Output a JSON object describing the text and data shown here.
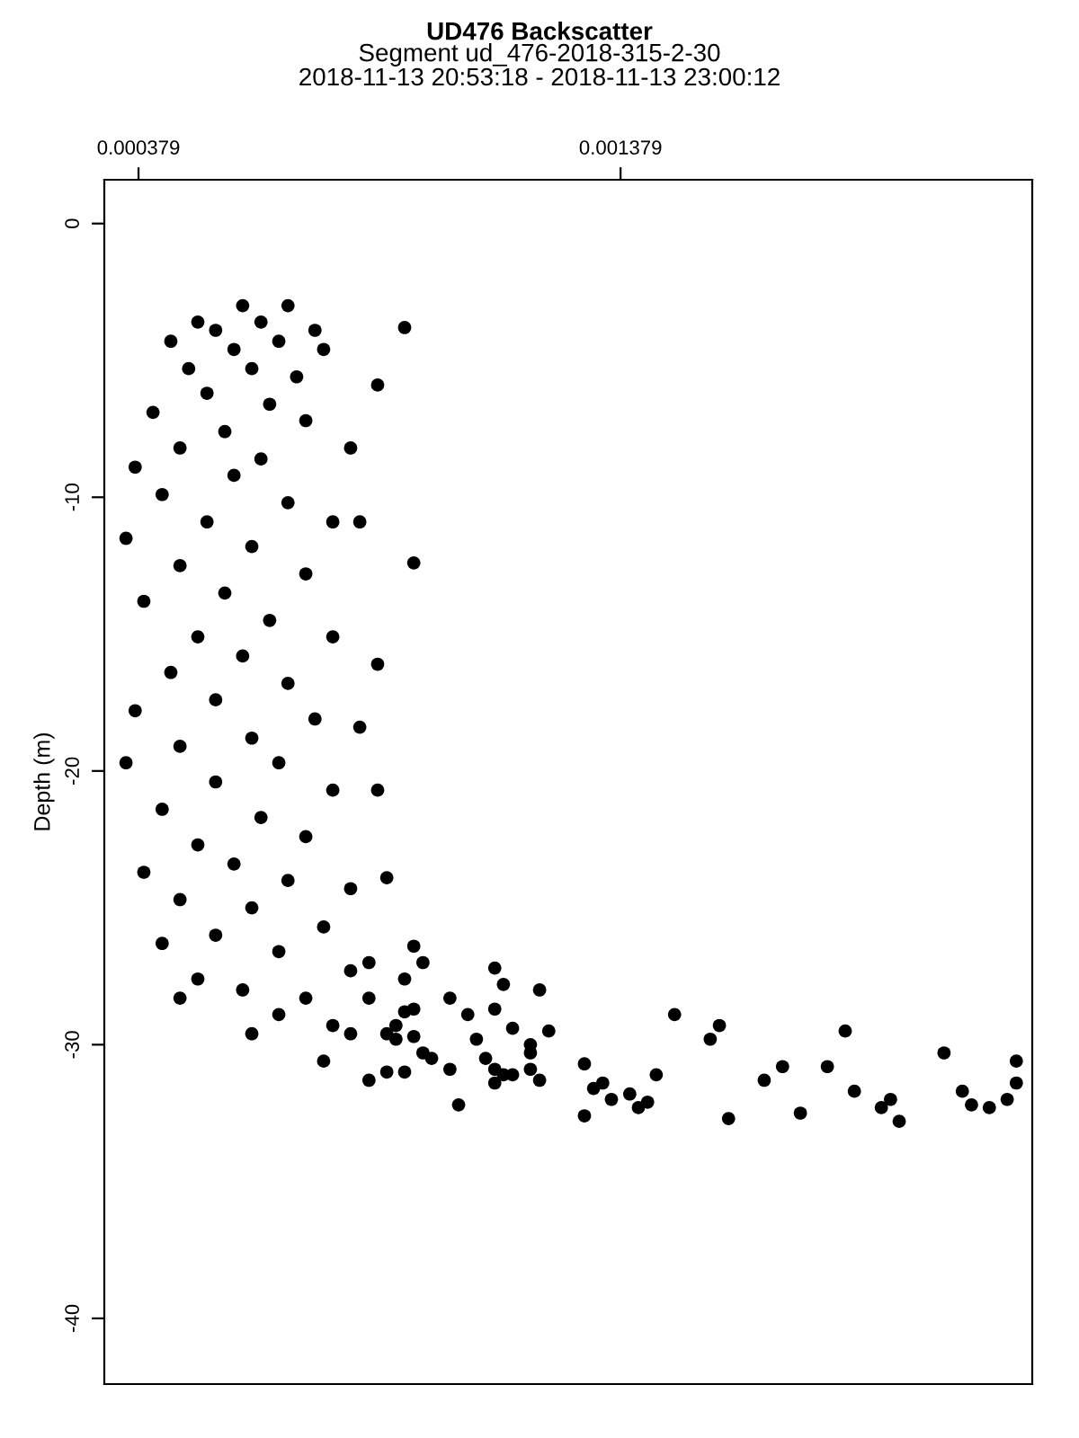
{
  "chart_data": {
    "type": "scatter",
    "title": "UD476 Backscatter",
    "subtitle": "Segment ud_476-2018-315-2-30\n2018-11-13 20:53:18 - 2018-11-13 23:00:12",
    "ylabel": "Depth (m)",
    "xlim": [
      0.000308,
      0.002233
    ],
    "ylim": [
      -42.4,
      1.6
    ],
    "xticks": [
      0.000379,
      0.001379
    ],
    "yticks": [
      0,
      -10,
      -20,
      -30,
      -40
    ],
    "grid": false,
    "marker": "circle",
    "series": [
      {
        "color": "#000000",
        "x": [
          0.00095,
          0.000969,
          0.001118,
          0.001136,
          0.001211,
          0.001025,
          0.001062,
          0.001118,
          0.001155,
          0.00123,
          0.00108,
          0.001192,
          0.001192,
          0.001099,
          0.001192,
          0.001118,
          0.001136,
          0.001155,
          0.001118,
          0.001211,
          0.001043,
          0.001025,
          0.000987,
          0.000969,
          0.001304,
          0.001304,
          0.001323,
          0.001342,
          0.00136,
          0.001398,
          0.001416,
          0.001435,
          0.001453,
          0.001491,
          0.001565,
          0.001584,
          0.001603,
          0.001677,
          0.001715,
          0.001752,
          0.001808,
          0.001845,
          0.001864,
          0.00192,
          0.001939,
          0.001957,
          0.00205,
          0.002088,
          0.002107,
          0.002144,
          0.002181,
          0.0022,
          0.0022,
          0.000931,
          0.000894,
          0.000913,
          0.000913,
          0.000931,
          0.00095,
          0.00095,
          0.000894,
          0.000931,
          0.000857,
          0.000857,
          0.000595,
          0.000689,
          0.000502,
          0.000539,
          0.000633,
          0.000745,
          0.000446,
          0.000577,
          0.00067,
          0.000763,
          0.000931,
          0.000483,
          0.000614,
          0.000707,
          0.000521,
          0.000651,
          0.000409,
          0.000558,
          0.000726,
          0.000465,
          0.000633,
          0.000819,
          0.000875,
          0.000372,
          0.000577,
          0.000428,
          0.000689,
          0.000521,
          0.000782,
          0.000838,
          0.000353,
          0.000614,
          0.000465,
          0.00095,
          0.000726,
          0.000558,
          0.00039,
          0.000651,
          0.000502,
          0.000782,
          0.000595,
          0.000875,
          0.000446,
          0.000689,
          0.000539,
          0.000372,
          0.000745,
          0.000838,
          0.000614,
          0.000465,
          0.000353,
          0.00067,
          0.000539,
          0.000782,
          0.000875,
          0.000428,
          0.000633,
          0.000726,
          0.000502,
          0.000577,
          0.00039,
          0.000894,
          0.000689,
          0.000819,
          0.000465,
          0.000614,
          0.000763,
          0.000539,
          0.000428,
          0.00067,
          0.000819,
          0.000502,
          0.000595,
          0.000726,
          0.000614,
          0.000782,
          0.000465,
          0.00067,
          0.000857,
          0.000763,
          0.000819
        ],
        "values": [
          -26.4,
          -27.0,
          -27.2,
          -27.8,
          -28.0,
          -28.3,
          -28.9,
          -28.7,
          -29.4,
          -29.5,
          -29.8,
          -30.0,
          -30.3,
          -30.5,
          -30.9,
          -30.9,
          -31.1,
          -31.1,
          -31.4,
          -31.3,
          -32.2,
          -30.9,
          -30.5,
          -30.3,
          -30.7,
          -32.6,
          -31.6,
          -31.4,
          -32.0,
          -31.8,
          -32.3,
          -32.1,
          -31.1,
          -28.9,
          -29.8,
          -29.3,
          -32.7,
          -31.3,
          -30.8,
          -32.5,
          -30.8,
          -29.5,
          -31.7,
          -32.3,
          -32.0,
          -32.8,
          -30.3,
          -31.7,
          -32.2,
          -32.3,
          -32.0,
          -31.4,
          -30.6,
          -27.6,
          -29.6,
          -29.3,
          -29.8,
          -28.8,
          -28.7,
          -29.7,
          -31.0,
          -31.0,
          -31.3,
          -28.3,
          -3.0,
          -3.0,
          -3.6,
          -3.9,
          -3.6,
          -3.9,
          -4.3,
          -4.6,
          -4.3,
          -4.6,
          -3.8,
          -5.3,
          -5.3,
          -5.6,
          -6.2,
          -6.6,
          -6.9,
          -7.6,
          -7.2,
          -8.2,
          -8.6,
          -8.2,
          -5.9,
          -8.9,
          -9.2,
          -9.9,
          -10.2,
          -10.9,
          -10.9,
          -10.9,
          -11.5,
          -11.8,
          -12.5,
          -12.4,
          -12.8,
          -13.5,
          -13.8,
          -14.5,
          -15.1,
          -15.1,
          -15.8,
          -16.1,
          -16.4,
          -16.8,
          -17.4,
          -17.8,
          -18.1,
          -18.4,
          -18.8,
          -19.1,
          -19.7,
          -19.7,
          -20.4,
          -20.7,
          -20.7,
          -21.4,
          -21.7,
          -22.4,
          -22.7,
          -23.4,
          -23.7,
          -23.9,
          -24.0,
          -24.3,
          -24.7,
          -25.0,
          -25.7,
          -26.0,
          -26.3,
          -26.6,
          -27.3,
          -27.6,
          -28.0,
          -28.3,
          -29.6,
          -29.3,
          -28.3,
          -28.9,
          -27.0,
          -30.6,
          -29.6
        ]
      }
    ]
  }
}
